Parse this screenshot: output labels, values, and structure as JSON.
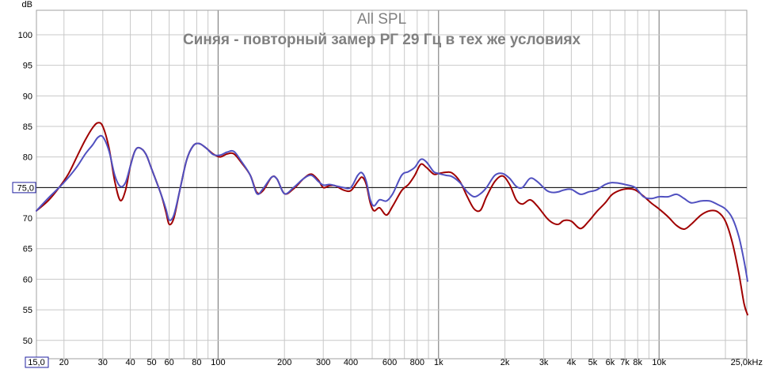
{
  "chart_data": {
    "type": "line",
    "title": "All SPL",
    "subtitle": "Синяя - повторный замер РГ 29 Гц в тех же условиях",
    "ylabel": "dB",
    "xscale": "log",
    "xlim": [
      15,
      25000
    ],
    "ylim": [
      47,
      104
    ],
    "grid": true,
    "reference_line": {
      "value": 75,
      "label": "75,0"
    },
    "x_axis_start_label": "15,0",
    "x_ticks": [
      {
        "value": 20,
        "label": "20"
      },
      {
        "value": 30,
        "label": "30"
      },
      {
        "value": 40,
        "label": "40"
      },
      {
        "value": 50,
        "label": "50"
      },
      {
        "value": 60,
        "label": "60"
      },
      {
        "value": 80,
        "label": "80"
      },
      {
        "value": 100,
        "label": "100"
      },
      {
        "value": 200,
        "label": "200"
      },
      {
        "value": 300,
        "label": "300"
      },
      {
        "value": 400,
        "label": "400"
      },
      {
        "value": 600,
        "label": "600"
      },
      {
        "value": 800,
        "label": "800"
      },
      {
        "value": 1000,
        "label": "1k"
      },
      {
        "value": 2000,
        "label": "2k"
      },
      {
        "value": 3000,
        "label": "3k"
      },
      {
        "value": 4000,
        "label": "4k"
      },
      {
        "value": 5000,
        "label": "5k"
      },
      {
        "value": 6000,
        "label": "6k"
      },
      {
        "value": 7000,
        "label": "7k"
      },
      {
        "value": 8000,
        "label": "8k"
      },
      {
        "value": 10000,
        "label": "10k"
      },
      {
        "value": 25000,
        "label": "25,0kHz"
      }
    ],
    "y_ticks": [
      50,
      55,
      60,
      65,
      70,
      75,
      80,
      85,
      90,
      95,
      100
    ],
    "series": [
      {
        "color": "#a00000",
        "points": [
          [
            15,
            71.2
          ],
          [
            17,
            72.9
          ],
          [
            19,
            75.0
          ],
          [
            21,
            77.3
          ],
          [
            23,
            80.2
          ],
          [
            25,
            82.8
          ],
          [
            27,
            84.8
          ],
          [
            28.5,
            85.6
          ],
          [
            30,
            85.0
          ],
          [
            32,
            81.5
          ],
          [
            34,
            76.0
          ],
          [
            36,
            72.9
          ],
          [
            38,
            74.5
          ],
          [
            40,
            78.5
          ],
          [
            42,
            81.0
          ],
          [
            44,
            81.5
          ],
          [
            47,
            80.5
          ],
          [
            50,
            78.0
          ],
          [
            55,
            74.0
          ],
          [
            58,
            71.0
          ],
          [
            60,
            69.0
          ],
          [
            63,
            70.0
          ],
          [
            67,
            74.5
          ],
          [
            72,
            79.5
          ],
          [
            77,
            81.8
          ],
          [
            82,
            82.2
          ],
          [
            88,
            81.5
          ],
          [
            95,
            80.5
          ],
          [
            102,
            80.0
          ],
          [
            110,
            80.5
          ],
          [
            118,
            80.5
          ],
          [
            128,
            79.0
          ],
          [
            140,
            77.0
          ],
          [
            150,
            74.2
          ],
          [
            160,
            74.5
          ],
          [
            175,
            76.7
          ],
          [
            185,
            76.4
          ],
          [
            200,
            74.0
          ],
          [
            220,
            74.8
          ],
          [
            245,
            76.5
          ],
          [
            265,
            77.2
          ],
          [
            285,
            76.2
          ],
          [
            300,
            75.0
          ],
          [
            320,
            75.3
          ],
          [
            340,
            75.3
          ],
          [
            370,
            74.6
          ],
          [
            400,
            74.5
          ],
          [
            430,
            76.0
          ],
          [
            450,
            76.7
          ],
          [
            470,
            75.5
          ],
          [
            490,
            72.5
          ],
          [
            510,
            71.2
          ],
          [
            540,
            71.7
          ],
          [
            580,
            70.5
          ],
          [
            620,
            72.0
          ],
          [
            680,
            74.5
          ],
          [
            730,
            75.5
          ],
          [
            780,
            77.0
          ],
          [
            830,
            78.8
          ],
          [
            880,
            78.3
          ],
          [
            950,
            77.2
          ],
          [
            1000,
            77.3
          ],
          [
            1080,
            77.5
          ],
          [
            1150,
            77.4
          ],
          [
            1250,
            76.0
          ],
          [
            1350,
            73.5
          ],
          [
            1450,
            71.5
          ],
          [
            1550,
            71.3
          ],
          [
            1650,
            73.5
          ],
          [
            1800,
            76.0
          ],
          [
            1950,
            76.9
          ],
          [
            2100,
            75.5
          ],
          [
            2250,
            73.0
          ],
          [
            2400,
            72.3
          ],
          [
            2600,
            73.0
          ],
          [
            2800,
            72.0
          ],
          [
            3100,
            70.0
          ],
          [
            3300,
            69.2
          ],
          [
            3500,
            69.0
          ],
          [
            3700,
            69.6
          ],
          [
            4000,
            69.5
          ],
          [
            4400,
            68.3
          ],
          [
            4800,
            69.5
          ],
          [
            5200,
            71.0
          ],
          [
            5700,
            72.5
          ],
          [
            6100,
            73.8
          ],
          [
            6600,
            74.5
          ],
          [
            7200,
            74.8
          ],
          [
            7800,
            74.6
          ],
          [
            8500,
            73.6
          ],
          [
            9200,
            72.5
          ],
          [
            10000,
            71.5
          ],
          [
            11000,
            70.2
          ],
          [
            12000,
            68.8
          ],
          [
            13000,
            68.2
          ],
          [
            14000,
            69.0
          ],
          [
            15500,
            70.5
          ],
          [
            17000,
            71.2
          ],
          [
            18500,
            71.0
          ],
          [
            20000,
            69.5
          ],
          [
            21500,
            66.0
          ],
          [
            23000,
            61.0
          ],
          [
            24300,
            56.0
          ],
          [
            25200,
            54.2
          ]
        ]
      },
      {
        "color": "#5050c0",
        "points": [
          [
            15,
            71.2
          ],
          [
            17,
            73.3
          ],
          [
            19,
            75.0
          ],
          [
            21,
            76.7
          ],
          [
            23,
            78.5
          ],
          [
            25,
            80.5
          ],
          [
            27,
            82.0
          ],
          [
            28.5,
            83.2
          ],
          [
            30,
            83.3
          ],
          [
            32,
            81.0
          ],
          [
            34,
            77.0
          ],
          [
            36,
            75.2
          ],
          [
            38,
            75.8
          ],
          [
            40,
            78.5
          ],
          [
            42,
            81.0
          ],
          [
            44,
            81.5
          ],
          [
            47,
            80.5
          ],
          [
            50,
            78.0
          ],
          [
            55,
            74.0
          ],
          [
            58,
            71.5
          ],
          [
            60,
            69.7
          ],
          [
            63,
            70.5
          ],
          [
            67,
            74.5
          ],
          [
            72,
            79.5
          ],
          [
            77,
            81.8
          ],
          [
            82,
            82.2
          ],
          [
            88,
            81.5
          ],
          [
            95,
            80.4
          ],
          [
            102,
            80.3
          ],
          [
            110,
            80.8
          ],
          [
            118,
            80.9
          ],
          [
            128,
            79.2
          ],
          [
            140,
            77.0
          ],
          [
            150,
            74.0
          ],
          [
            160,
            74.8
          ],
          [
            175,
            76.7
          ],
          [
            185,
            76.4
          ],
          [
            200,
            74.0
          ],
          [
            220,
            75.0
          ],
          [
            245,
            76.5
          ],
          [
            265,
            77.0
          ],
          [
            285,
            76.0
          ],
          [
            300,
            75.4
          ],
          [
            320,
            75.5
          ],
          [
            340,
            75.3
          ],
          [
            370,
            75.0
          ],
          [
            400,
            75.0
          ],
          [
            430,
            77.0
          ],
          [
            450,
            77.4
          ],
          [
            470,
            76.0
          ],
          [
            490,
            73.0
          ],
          [
            510,
            72.0
          ],
          [
            540,
            73.0
          ],
          [
            580,
            72.8
          ],
          [
            620,
            74.0
          ],
          [
            680,
            77.0
          ],
          [
            730,
            77.6
          ],
          [
            780,
            78.3
          ],
          [
            830,
            79.6
          ],
          [
            880,
            79.2
          ],
          [
            950,
            77.6
          ],
          [
            1000,
            77.3
          ],
          [
            1080,
            77.0
          ],
          [
            1150,
            76.8
          ],
          [
            1250,
            75.8
          ],
          [
            1350,
            74.3
          ],
          [
            1450,
            73.5
          ],
          [
            1550,
            74.0
          ],
          [
            1650,
            75.0
          ],
          [
            1800,
            77.0
          ],
          [
            1950,
            77.3
          ],
          [
            2100,
            76.5
          ],
          [
            2250,
            75.2
          ],
          [
            2400,
            75.0
          ],
          [
            2600,
            76.5
          ],
          [
            2800,
            76.0
          ],
          [
            3100,
            74.5
          ],
          [
            3300,
            74.2
          ],
          [
            3500,
            74.3
          ],
          [
            3700,
            74.6
          ],
          [
            4000,
            74.7
          ],
          [
            4400,
            73.9
          ],
          [
            4800,
            74.3
          ],
          [
            5200,
            74.6
          ],
          [
            5700,
            75.5
          ],
          [
            6100,
            75.8
          ],
          [
            6600,
            75.7
          ],
          [
            7200,
            75.4
          ],
          [
            7800,
            75.0
          ],
          [
            8500,
            73.5
          ],
          [
            9200,
            73.2
          ],
          [
            10000,
            73.5
          ],
          [
            11000,
            73.5
          ],
          [
            12000,
            73.9
          ],
          [
            13000,
            73.2
          ],
          [
            14000,
            72.5
          ],
          [
            15500,
            72.8
          ],
          [
            17000,
            72.8
          ],
          [
            18500,
            72.2
          ],
          [
            20000,
            71.5
          ],
          [
            21500,
            70.0
          ],
          [
            23000,
            67.0
          ],
          [
            24300,
            63.0
          ],
          [
            25200,
            59.7
          ]
        ]
      }
    ]
  }
}
